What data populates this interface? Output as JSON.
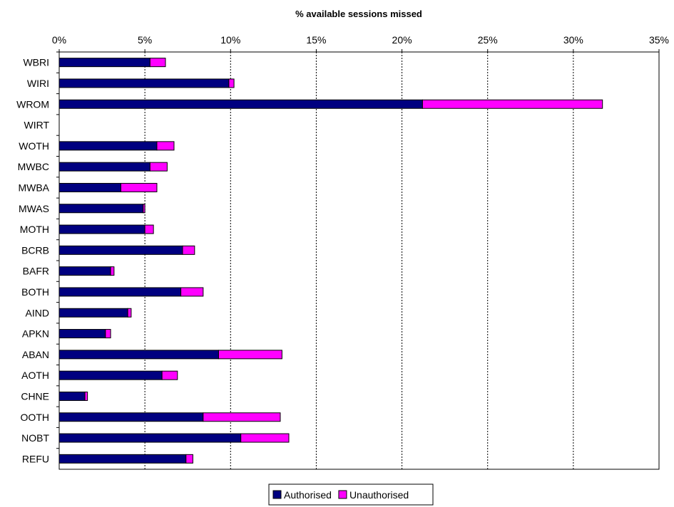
{
  "chart_data": {
    "type": "bar",
    "orientation": "horizontal",
    "stacked": true,
    "title": "% available sessions missed",
    "xlabel": "",
    "ylabel": "",
    "xlim": [
      0,
      35
    ],
    "x_ticks": [
      0,
      5,
      10,
      15,
      20,
      25,
      30,
      35
    ],
    "x_tick_labels": [
      "0%",
      "5%",
      "10%",
      "15%",
      "20%",
      "25%",
      "30%",
      "35%"
    ],
    "x_axis_position": "top",
    "grid": "vertical dotted",
    "legend_position": "bottom-center",
    "categories": [
      "WBRI",
      "WIRI",
      "WROM",
      "WIRT",
      "WOTH",
      "MWBC",
      "MWBA",
      "MWAS",
      "MOTH",
      "BCRB",
      "BAFR",
      "BOTH",
      "AIND",
      "APKN",
      "ABAN",
      "AOTH",
      "CHNE",
      "OOTH",
      "NOBT",
      "REFU"
    ],
    "series": [
      {
        "name": "Authorised",
        "color": "#000080",
        "values": [
          5.3,
          9.9,
          21.2,
          0,
          5.7,
          5.3,
          3.6,
          4.9,
          5.0,
          7.2,
          3.0,
          7.1,
          4.0,
          2.7,
          9.3,
          6.0,
          1.5,
          8.4,
          10.6,
          7.4
        ]
      },
      {
        "name": "Unauthorised",
        "color": "#FF00FF",
        "values": [
          0.9,
          0.3,
          10.5,
          0,
          1.0,
          1.0,
          2.1,
          0.1,
          0.5,
          0.7,
          0.2,
          1.3,
          0.2,
          0.3,
          3.7,
          0.9,
          0.15,
          4.5,
          2.8,
          0.4
        ]
      }
    ]
  }
}
